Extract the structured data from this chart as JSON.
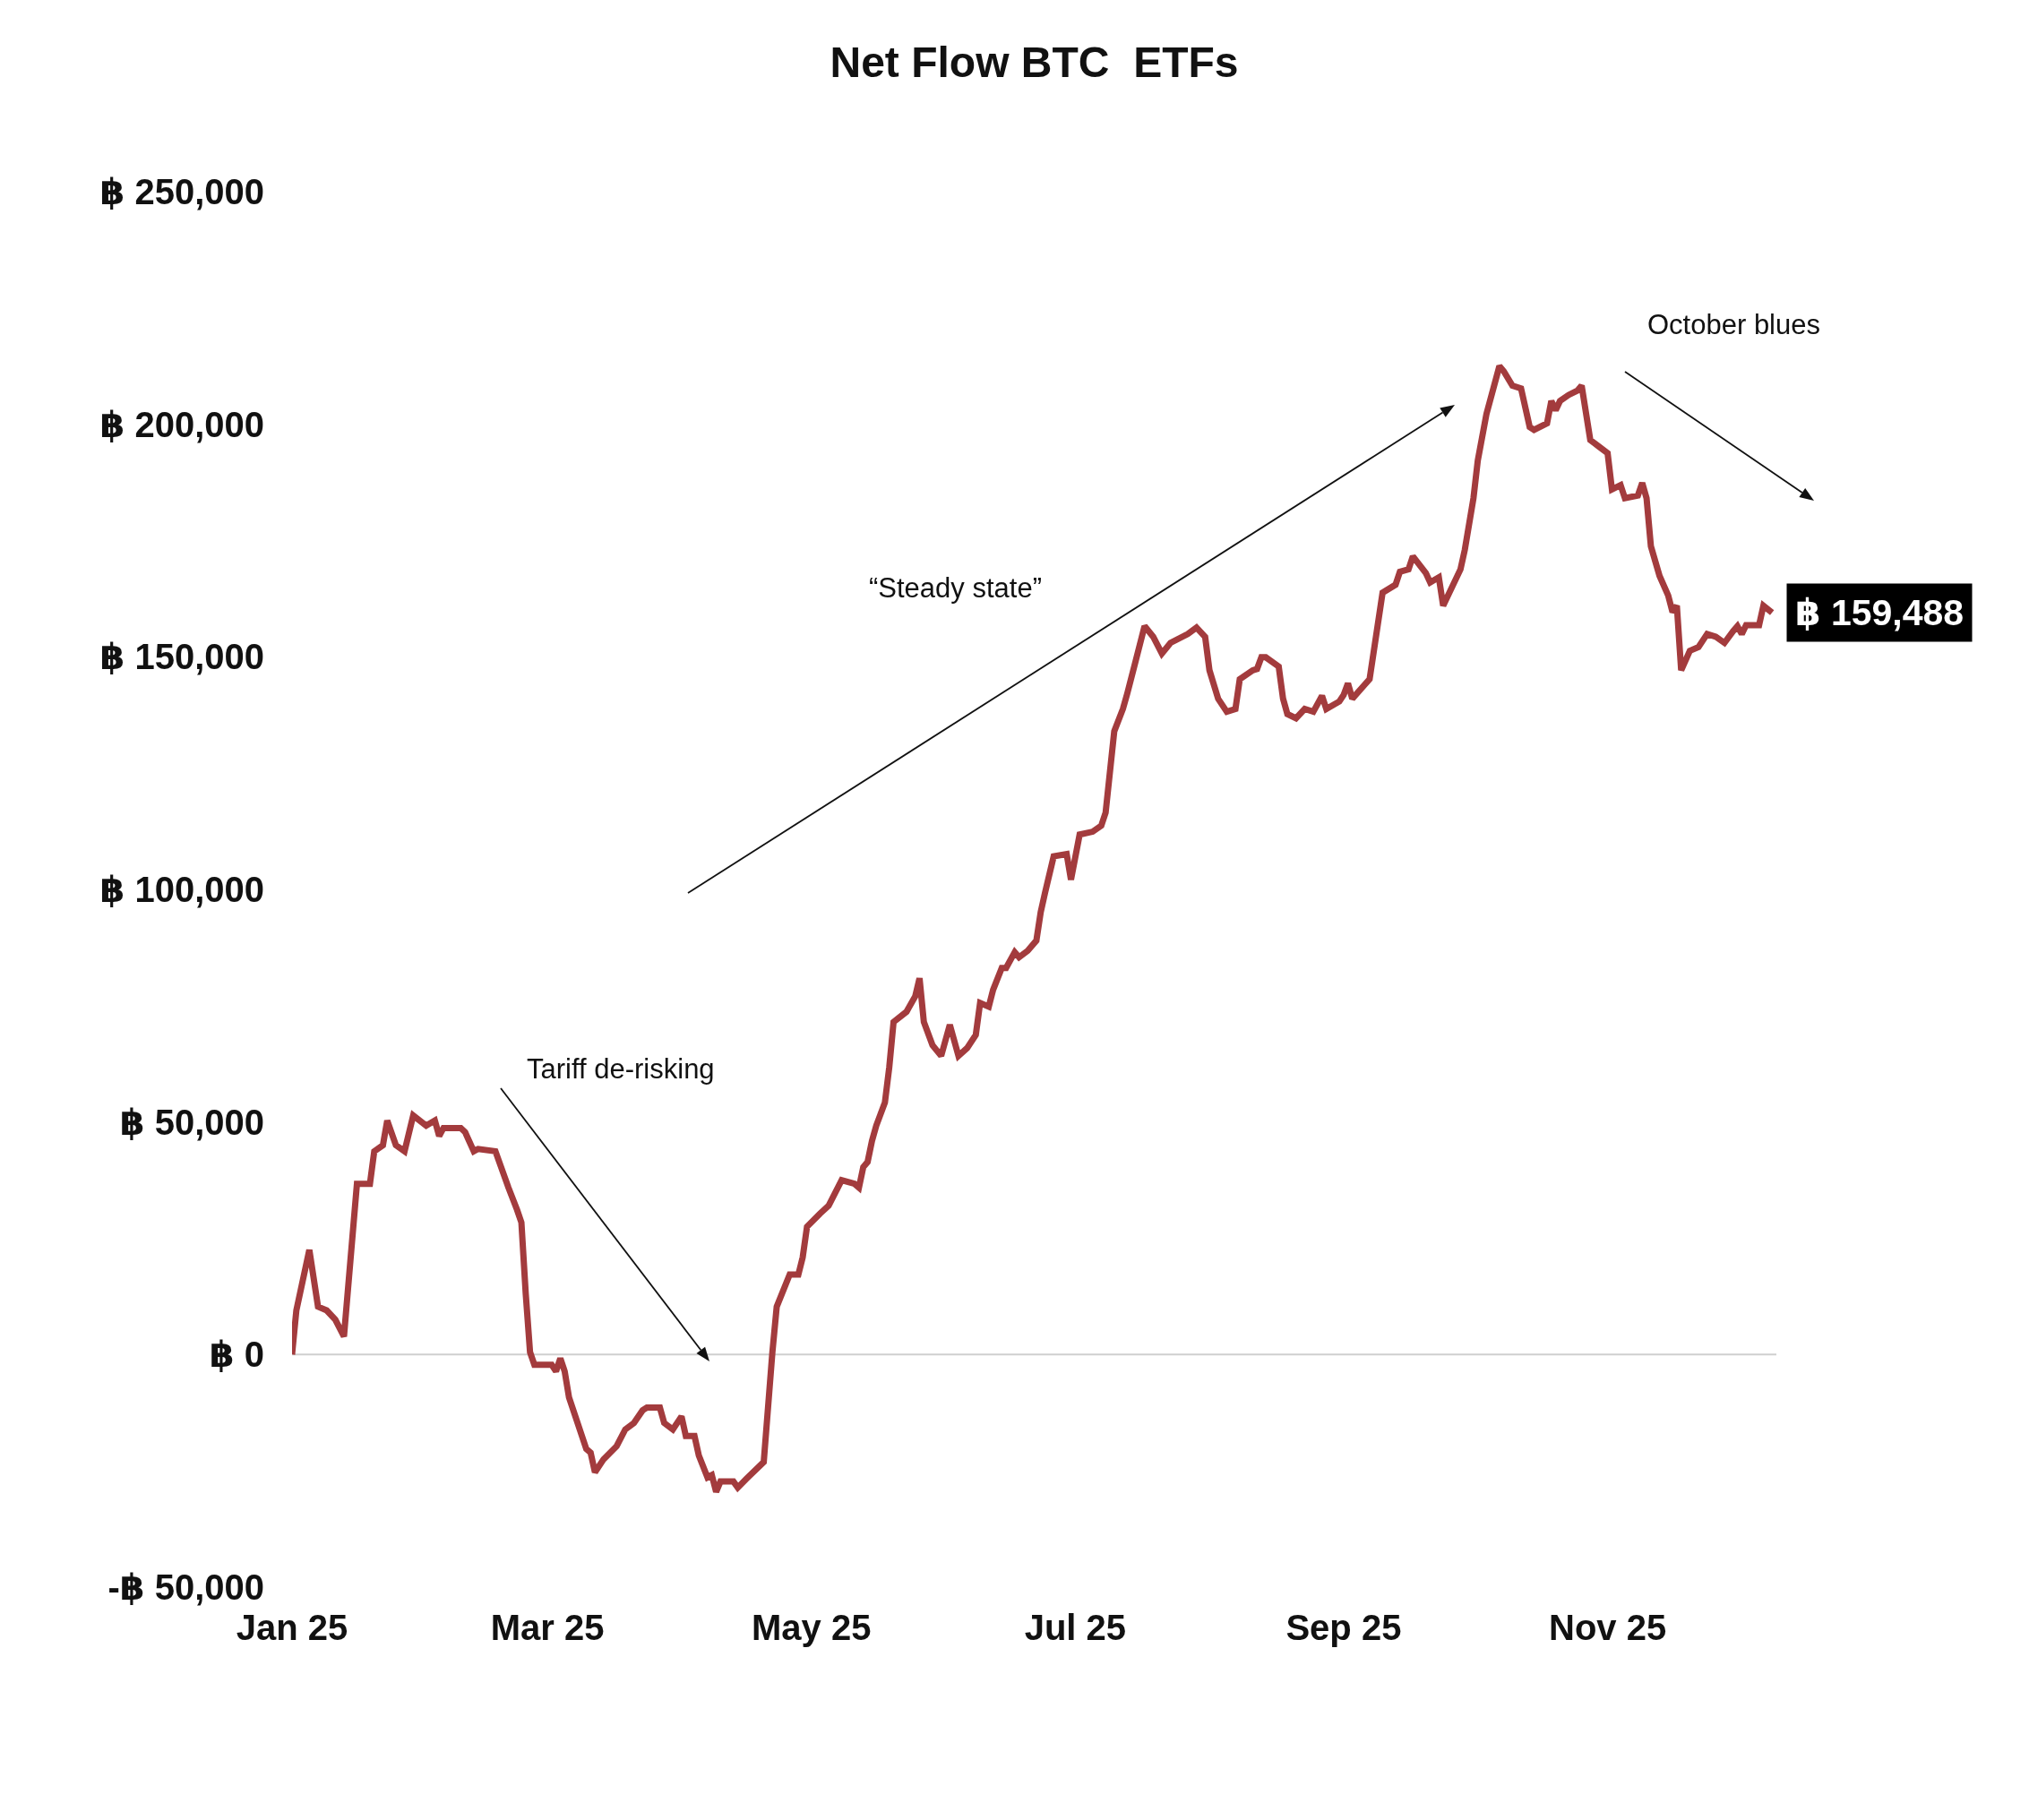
{
  "chart_data": {
    "type": "line",
    "title": "Net Flow BTC  ETFs",
    "x": [
      "2025-01-01",
      "2025-01-02",
      "2025-01-05",
      "2025-01-07",
      "2025-01-09",
      "2025-01-11",
      "2025-01-13",
      "2025-01-16",
      "2025-01-19",
      "2025-01-20",
      "2025-01-22",
      "2025-01-23",
      "2025-01-25",
      "2025-01-27",
      "2025-01-29",
      "2025-02-01",
      "2025-02-03",
      "2025-02-04",
      "2025-02-05",
      "2025-02-09",
      "2025-02-10",
      "2025-02-12",
      "2025-02-13",
      "2025-02-17",
      "2025-02-20",
      "2025-02-22",
      "2025-02-23",
      "2025-02-24",
      "2025-02-25",
      "2025-02-26",
      "2025-03-02",
      "2025-03-03",
      "2025-03-04",
      "2025-03-05",
      "2025-03-06",
      "2025-03-10",
      "2025-03-11",
      "2025-03-12",
      "2025-03-14",
      "2025-03-17",
      "2025-03-19",
      "2025-03-21",
      "2025-03-23",
      "2025-03-24",
      "2025-03-27",
      "2025-03-28",
      "2025-03-30",
      "2025-04-01",
      "2025-04-02",
      "2025-04-04",
      "2025-04-05",
      "2025-04-07",
      "2025-04-08",
      "2025-04-09",
      "2025-04-10",
      "2025-04-13",
      "2025-04-14",
      "2025-04-16",
      "2025-04-20",
      "2025-04-22",
      "2025-04-23",
      "2025-04-26",
      "2025-04-28",
      "2025-04-29",
      "2025-04-30",
      "2025-05-03",
      "2025-05-05",
      "2025-05-08",
      "2025-05-11",
      "2025-05-12",
      "2025-05-13",
      "2025-05-14",
      "2025-05-15",
      "2025-05-16",
      "2025-05-18",
      "2025-05-19",
      "2025-05-20",
      "2025-05-23",
      "2025-05-25",
      "2025-05-26",
      "2025-05-27",
      "2025-05-29",
      "2025-05-31",
      "2025-06-02",
      "2025-06-04",
      "2025-06-06",
      "2025-06-08",
      "2025-06-09",
      "2025-06-11",
      "2025-06-12",
      "2025-06-14",
      "2025-06-15",
      "2025-06-17",
      "2025-06-18",
      "2025-06-20",
      "2025-06-22",
      "2025-06-23",
      "2025-06-24",
      "2025-06-26",
      "2025-06-29",
      "2025-06-30",
      "2025-07-02",
      "2025-07-05",
      "2025-07-07",
      "2025-07-08",
      "2025-07-10",
      "2025-07-12",
      "2025-07-13",
      "2025-07-15",
      "2025-07-17",
      "2025-07-19",
      "2025-07-21",
      "2025-07-23",
      "2025-07-27",
      "2025-07-29",
      "2025-07-31",
      "2025-08-01",
      "2025-08-03",
      "2025-08-05",
      "2025-08-07",
      "2025-08-08",
      "2025-08-11",
      "2025-08-12",
      "2025-08-13",
      "2025-08-14",
      "2025-08-17",
      "2025-08-18",
      "2025-08-19",
      "2025-08-21",
      "2025-08-23",
      "2025-08-25",
      "2025-08-27",
      "2025-08-28",
      "2025-08-31",
      "2025-09-01",
      "2025-09-02",
      "2025-09-03",
      "2025-09-07",
      "2025-09-10",
      "2025-09-13",
      "2025-09-14",
      "2025-09-16",
      "2025-09-17",
      "2025-09-20",
      "2025-09-21",
      "2025-09-23",
      "2025-09-24",
      "2025-09-28",
      "2025-09-29",
      "2025-10-01",
      "2025-10-02",
      "2025-10-04",
      "2025-10-07",
      "2025-10-08",
      "2025-10-10",
      "2025-10-12",
      "2025-10-14",
      "2025-10-15",
      "2025-10-18",
      "2025-10-19",
      "2025-10-20",
      "2025-10-21",
      "2025-10-23",
      "2025-10-25",
      "2025-10-26",
      "2025-10-28",
      "2025-10-30",
      "2025-11-01",
      "2025-11-02",
      "2025-11-04",
      "2025-11-05",
      "2025-11-08",
      "2025-11-09",
      "2025-11-10",
      "2025-11-11",
      "2025-11-13",
      "2025-11-15",
      "2025-11-16",
      "2025-11-17",
      "2025-11-18",
      "2025-11-20",
      "2025-11-22",
      "2025-11-24",
      "2025-11-26",
      "2025-11-28",
      "2025-11-30",
      "2025-12-01",
      "2025-12-02",
      "2025-12-03",
      "2025-12-06",
      "2025-12-07",
      "2025-12-09"
    ],
    "series": [
      {
        "color": "#a33b3d",
        "values": [
          0,
          9500,
          22500,
          10300,
          9500,
          7500,
          3900,
          36700,
          36700,
          43700,
          45000,
          50300,
          45000,
          43700,
          51400,
          49200,
          50300,
          47000,
          48700,
          48700,
          47800,
          43700,
          44200,
          43700,
          35900,
          31100,
          28400,
          13100,
          500,
          -2200,
          -2200,
          -3600,
          -800,
          -3600,
          -9200,
          -20300,
          -21100,
          -25300,
          -22500,
          -19700,
          -16100,
          -14700,
          -12000,
          -11400,
          -11400,
          -14700,
          -16100,
          -13300,
          -17500,
          -17500,
          -21700,
          -26400,
          -25900,
          -29500,
          -27300,
          -27300,
          -28600,
          -26700,
          -23100,
          500,
          10300,
          17200,
          17200,
          20900,
          27500,
          30300,
          32000,
          37500,
          36700,
          35900,
          40300,
          41400,
          45900,
          49200,
          54200,
          61700,
          71500,
          73700,
          77000,
          80900,
          71500,
          66500,
          64200,
          70900,
          64200,
          65900,
          68700,
          75600,
          74800,
          78400,
          83100,
          83100,
          86500,
          85400,
          86800,
          89000,
          95100,
          99300,
          107100,
          107600,
          102100,
          111800,
          112400,
          113700,
          116500,
          134000,
          138800,
          142100,
          149300,
          156600,
          154300,
          150700,
          153000,
          154900,
          156300,
          154300,
          147100,
          141000,
          138200,
          138800,
          145200,
          147100,
          147400,
          149900,
          149900,
          147900,
          141000,
          137700,
          136800,
          138800,
          138200,
          141600,
          138800,
          140400,
          141800,
          144300,
          141000,
          145200,
          163800,
          165500,
          168300,
          168800,
          171600,
          168000,
          166000,
          167100,
          161000,
          168800,
          173000,
          184100,
          192200,
          202200,
          212500,
          211400,
          208300,
          207700,
          199400,
          198800,
          200200,
          205000,
          203000,
          205000,
          206300,
          207200,
          208300,
          196600,
          195200,
          193800,
          186000,
          186900,
          184100,
          184700,
          187400,
          184100,
          173800,
          167400,
          163200,
          159600,
          161000,
          147100,
          151300,
          152100,
          154900,
          154300,
          153000,
          155500,
          156600,
          154900,
          156800,
          156800,
          161000,
          159488
        ]
      }
    ],
    "xlim": [
      "2025-01-01",
      "2025-12-10"
    ],
    "xticks": [
      {
        "value": "2025-01-01",
        "label": "Jan 25"
      },
      {
        "value": "2025-03-01",
        "label": "Mar 25"
      },
      {
        "value": "2025-05-01",
        "label": "May 25"
      },
      {
        "value": "2025-07-01",
        "label": "Jul 25"
      },
      {
        "value": "2025-09-01",
        "label": "Sep 25"
      },
      {
        "value": "2025-11-01",
        "label": "Nov 25"
      }
    ],
    "ylim": [
      -50000,
      250000
    ],
    "yticks": [
      {
        "value": -50000,
        "label": "-฿ 50,000"
      },
      {
        "value": 0,
        "label": "฿ 0"
      },
      {
        "value": 50000,
        "label": "฿ 50,000"
      },
      {
        "value": 100000,
        "label": "฿ 100,000"
      },
      {
        "value": 150000,
        "label": "฿ 150,000"
      },
      {
        "value": 200000,
        "label": "฿ 200,000"
      },
      {
        "value": 250000,
        "label": "฿ 250,000"
      }
    ],
    "annotations": [
      "Tariff de-risking",
      "“Steady state”",
      "October blues",
      {
        "text": "฿ 159,488",
        "x": "2025-12-09",
        "y": 159488
      }
    ],
    "ref_lines": [
      {
        "axis": "y",
        "value": 0,
        "color": "#cfcfcf"
      }
    ],
    "grid": false,
    "marker": "none",
    "line_style": "solid"
  }
}
